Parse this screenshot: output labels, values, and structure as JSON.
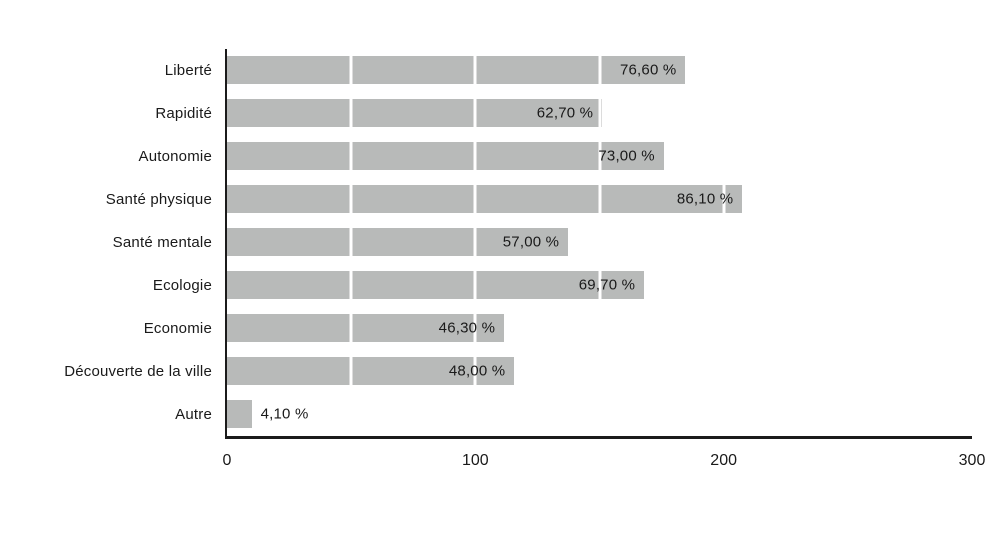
{
  "chart_data": {
    "type": "bar",
    "orientation": "horizontal",
    "title": "",
    "xlabel": "",
    "ylabel": "",
    "categories": [
      "Liberté",
      "Rapidité",
      "Autonomie",
      "Santé physique",
      "Santé mentale",
      "Ecologie",
      "Economie",
      "Découverte de la ville",
      "Autre"
    ],
    "percent_values": [
      76.6,
      62.7,
      73.0,
      86.1,
      57.0,
      69.7,
      46.3,
      48.0,
      4.1
    ],
    "value_labels": [
      "76,60 %",
      "62,70 %",
      "73,00 %",
      "86,10 %",
      "57,00 %",
      "69,70 %",
      "46,30 %",
      "48,00 %",
      "4,10 %"
    ],
    "bar_extents_axis_units": [
      184.6,
      151.1,
      175.9,
      207.5,
      137.4,
      168.0,
      111.6,
      115.7,
      9.9
    ],
    "xlim": [
      0,
      300
    ],
    "x_ticks": [
      0,
      100,
      200,
      300
    ],
    "gridline_interval": 50,
    "legend": null,
    "colors": {
      "bar": "#b8bab9",
      "gridline": "#ffffff",
      "axis_line": "#1b1b1b",
      "text": "#1a1a1a",
      "background": "#ffffff"
    }
  }
}
